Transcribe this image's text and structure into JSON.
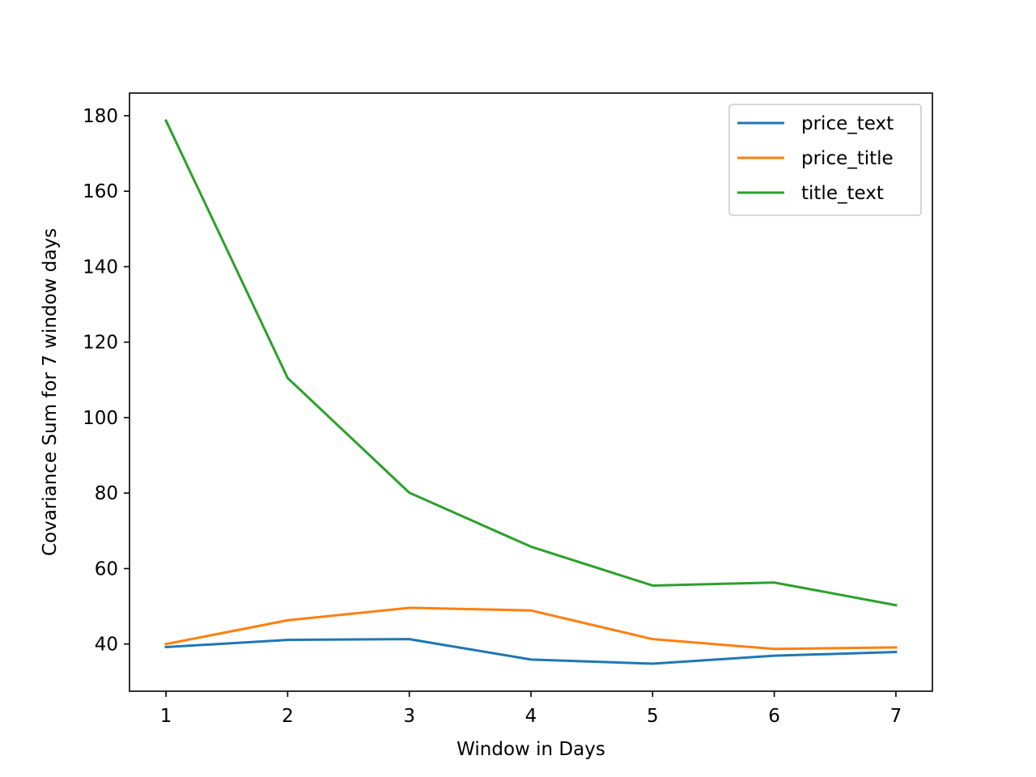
{
  "chart_data": {
    "type": "line",
    "title": "",
    "xlabel": "Window in Days",
    "ylabel": "Covariance Sum for 7 window days",
    "x": [
      1,
      2,
      3,
      4,
      5,
      6,
      7
    ],
    "xlim": [
      0.7,
      7.3
    ],
    "ylim": [
      27.5,
      186
    ],
    "xticks": [
      1,
      2,
      3,
      4,
      5,
      6,
      7
    ],
    "yticks": [
      40,
      60,
      80,
      100,
      120,
      140,
      160,
      180
    ],
    "grid": false,
    "legend_position": "top-right",
    "series": [
      {
        "name": "price_text",
        "color": "#1f77b4",
        "values": [
          39.2,
          41.1,
          41.3,
          35.9,
          34.8,
          36.9,
          37.9
        ]
      },
      {
        "name": "price_title",
        "color": "#ff7f0e",
        "values": [
          40.0,
          46.3,
          49.6,
          48.9,
          41.3,
          38.7,
          39.1
        ]
      },
      {
        "name": "title_text",
        "color": "#2ca02c",
        "values": [
          178.7,
          110.5,
          80.1,
          65.8,
          55.5,
          56.3,
          50.3
        ]
      }
    ]
  }
}
